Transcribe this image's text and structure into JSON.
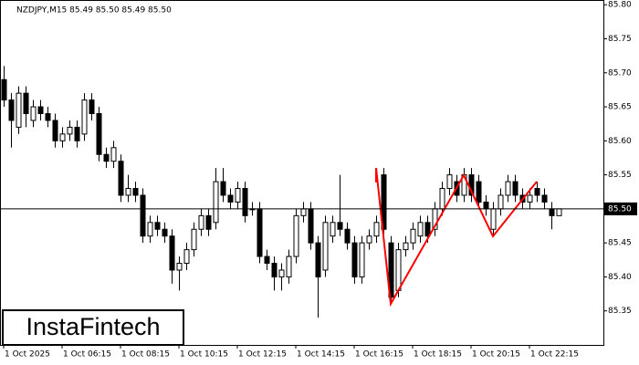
{
  "chart_data": {
    "type": "candlestick",
    "title": "NZDJPY,M15  85.49 85.50 85.49 85.50",
    "watermark": "InstaFintech",
    "categories": [
      "1 Oct 2025",
      null,
      null,
      null,
      null,
      null,
      null,
      null,
      "1 Oct 06:15",
      null,
      null,
      null,
      null,
      null,
      null,
      null,
      "1 Oct 08:15",
      null,
      null,
      null,
      null,
      null,
      null,
      null,
      "1 Oct 10:15",
      null,
      null,
      null,
      null,
      null,
      null,
      null,
      "1 Oct 12:15",
      null,
      null,
      null,
      null,
      null,
      null,
      null,
      "1 Oct 14:15",
      null,
      null,
      null,
      null,
      null,
      null,
      null,
      "1 Oct 16:15",
      null,
      null,
      null,
      null,
      null,
      null,
      null,
      "1 Oct 18:15",
      null,
      null,
      null,
      null,
      null,
      null,
      null,
      "1 Oct 20:15",
      null,
      null,
      null,
      null,
      null,
      null,
      null,
      "1 Oct 22:15",
      null,
      null,
      null,
      null
    ],
    "open": [
      85.69,
      85.66,
      85.62,
      85.67,
      85.63,
      85.65,
      85.64,
      85.63,
      85.6,
      85.61,
      85.62,
      85.61,
      85.66,
      85.64,
      85.58,
      85.57,
      85.57,
      85.52,
      85.53,
      85.52,
      85.46,
      85.48,
      85.47,
      85.46,
      85.41,
      85.42,
      85.44,
      85.47,
      85.49,
      85.48,
      85.54,
      85.52,
      85.51,
      85.53,
      85.5,
      85.5,
      85.43,
      85.42,
      85.4,
      85.4,
      85.43,
      85.49,
      85.5,
      85.45,
      85.41,
      85.46,
      85.48,
      85.47,
      85.45,
      85.4,
      85.45,
      85.46,
      85.55,
      85.45,
      85.38,
      85.44,
      85.45,
      85.46,
      85.48,
      85.47,
      85.5,
      85.53,
      85.54,
      85.52,
      85.55,
      85.54,
      85.51,
      85.47,
      85.5,
      85.52,
      85.54,
      85.52,
      85.51,
      85.53,
      85.52,
      85.5,
      85.49
    ],
    "high": [
      85.71,
      85.67,
      85.68,
      85.68,
      85.66,
      85.66,
      85.65,
      85.64,
      85.62,
      85.63,
      85.63,
      85.67,
      85.67,
      85.65,
      85.59,
      85.6,
      85.58,
      85.55,
      85.54,
      85.53,
      85.49,
      85.49,
      85.48,
      85.47,
      85.43,
      85.45,
      85.48,
      85.5,
      85.5,
      85.56,
      85.56,
      85.53,
      85.54,
      85.54,
      85.51,
      85.51,
      85.44,
      85.43,
      85.42,
      85.44,
      85.5,
      85.51,
      85.51,
      85.46,
      85.49,
      85.49,
      85.55,
      85.48,
      85.46,
      85.46,
      85.47,
      85.49,
      85.56,
      85.46,
      85.45,
      85.46,
      85.48,
      85.49,
      85.49,
      85.51,
      85.54,
      85.56,
      85.55,
      85.56,
      85.56,
      85.55,
      85.52,
      85.51,
      85.53,
      85.55,
      85.55,
      85.53,
      85.53,
      85.54,
      85.53,
      85.51,
      85.5
    ],
    "low": [
      85.65,
      85.59,
      85.61,
      85.62,
      85.62,
      85.63,
      85.62,
      85.59,
      85.59,
      85.6,
      85.59,
      85.6,
      85.63,
      85.57,
      85.56,
      85.56,
      85.51,
      85.51,
      85.51,
      85.45,
      85.45,
      85.46,
      85.45,
      85.39,
      85.38,
      85.41,
      85.43,
      85.46,
      85.46,
      85.47,
      85.51,
      85.5,
      85.5,
      85.48,
      85.49,
      85.42,
      85.41,
      85.38,
      85.38,
      85.39,
      85.42,
      85.48,
      85.44,
      85.34,
      85.4,
      85.45,
      85.46,
      85.44,
      85.39,
      85.39,
      85.44,
      85.45,
      85.46,
      85.36,
      85.37,
      85.43,
      85.44,
      85.45,
      85.45,
      85.46,
      85.49,
      85.52,
      85.51,
      85.51,
      85.51,
      85.5,
      85.49,
      85.46,
      85.49,
      85.51,
      85.51,
      85.5,
      85.5,
      85.51,
      85.5,
      85.47,
      85.49
    ],
    "close": [
      85.66,
      85.63,
      85.67,
      85.64,
      85.65,
      85.64,
      85.63,
      85.6,
      85.61,
      85.62,
      85.6,
      85.66,
      85.64,
      85.58,
      85.57,
      85.59,
      85.52,
      85.53,
      85.52,
      85.46,
      85.48,
      85.47,
      85.46,
      85.41,
      85.42,
      85.44,
      85.47,
      85.49,
      85.47,
      85.54,
      85.52,
      85.51,
      85.53,
      85.49,
      85.5,
      85.43,
      85.42,
      85.4,
      85.41,
      85.43,
      85.49,
      85.5,
      85.45,
      85.4,
      85.48,
      85.48,
      85.47,
      85.45,
      85.4,
      85.45,
      85.46,
      85.48,
      85.47,
      85.37,
      85.44,
      85.45,
      85.47,
      85.48,
      85.46,
      85.5,
      85.53,
      85.55,
      85.52,
      85.55,
      85.52,
      85.51,
      85.5,
      85.5,
      85.52,
      85.54,
      85.52,
      85.51,
      85.52,
      85.52,
      85.51,
      85.49,
      85.5
    ],
    "ylim": [
      85.3,
      85.807
    ],
    "yticks": [
      {
        "value": 85.35,
        "label": "85.35"
      },
      {
        "value": 85.4,
        "label": "85.40"
      },
      {
        "value": 85.45,
        "label": "85.45"
      },
      {
        "value": 85.5,
        "label": "85.50"
      },
      {
        "value": 85.55,
        "label": "85.55"
      },
      {
        "value": 85.6,
        "label": "85.60"
      },
      {
        "value": 85.65,
        "label": "85.65"
      },
      {
        "value": 85.7,
        "label": "85.70"
      },
      {
        "value": 85.75,
        "label": "85.75"
      },
      {
        "value": 85.8,
        "label": "85.80"
      }
    ],
    "current_price": {
      "value": 85.5,
      "label": "85.50"
    },
    "up_color": "#ffffff",
    "down_color": "#000000"
  }
}
